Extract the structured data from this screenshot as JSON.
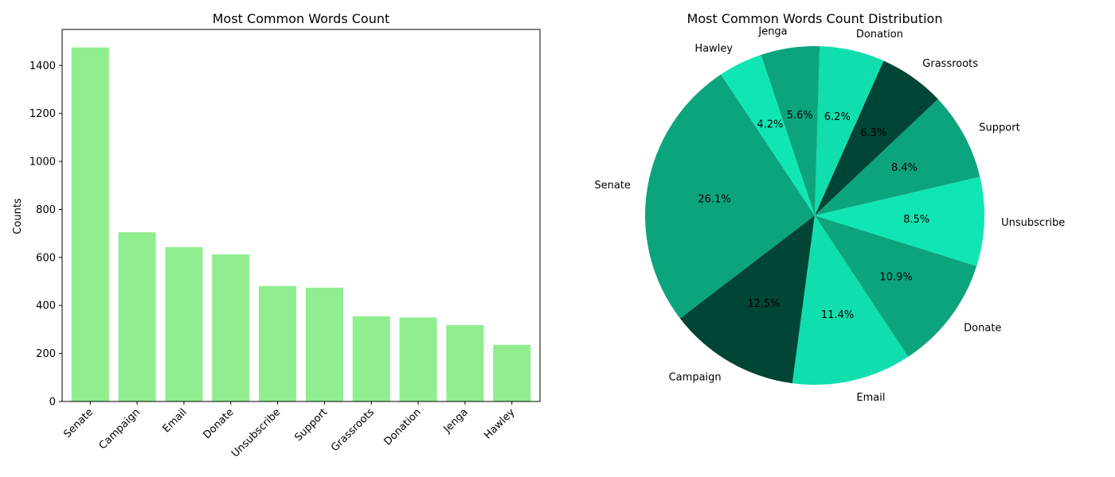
{
  "chart_data": [
    {
      "type": "bar",
      "title": "Most Common Words Count",
      "xlabel": "",
      "ylabel": "Counts",
      "categories": [
        "Senate",
        "Campaign",
        "Email",
        "Donate",
        "Unsubscribe",
        "Support",
        "Grassroots",
        "Donation",
        "Jenga",
        "Hawley"
      ],
      "values": [
        1475,
        705,
        643,
        613,
        481,
        474,
        355,
        350,
        318,
        236
      ],
      "ylim": [
        0,
        1550
      ],
      "yticks": [
        0,
        200,
        400,
        600,
        800,
        1000,
        1200,
        1400
      ],
      "bar_color": "#90ee90",
      "grid": false
    },
    {
      "type": "pie",
      "title": "Most Common Words Count Distribution",
      "labels": [
        "Senate",
        "Campaign",
        "Email",
        "Donate",
        "Unsubscribe",
        "Support",
        "Grassroots",
        "Donation",
        "Jenga",
        "Hawley"
      ],
      "values": [
        26.1,
        12.5,
        11.4,
        10.9,
        8.5,
        8.4,
        6.3,
        6.2,
        5.6,
        4.2
      ],
      "percent_labels": [
        "26.1%",
        "12.5%",
        "11.4%",
        "10.9%",
        "8.5%",
        "8.4%",
        "6.3%",
        "6.2%",
        "5.6%",
        "4.2%"
      ],
      "colors": [
        "#0ca47c",
        "#004535",
        "#10deac",
        "#0ca47c",
        "#10e6b4",
        "#0ca47c",
        "#004535",
        "#10deac",
        "#0ca47c",
        "#10e6b4"
      ],
      "start_angle_deg": 123.6,
      "direction": "counterclockwise"
    }
  ]
}
